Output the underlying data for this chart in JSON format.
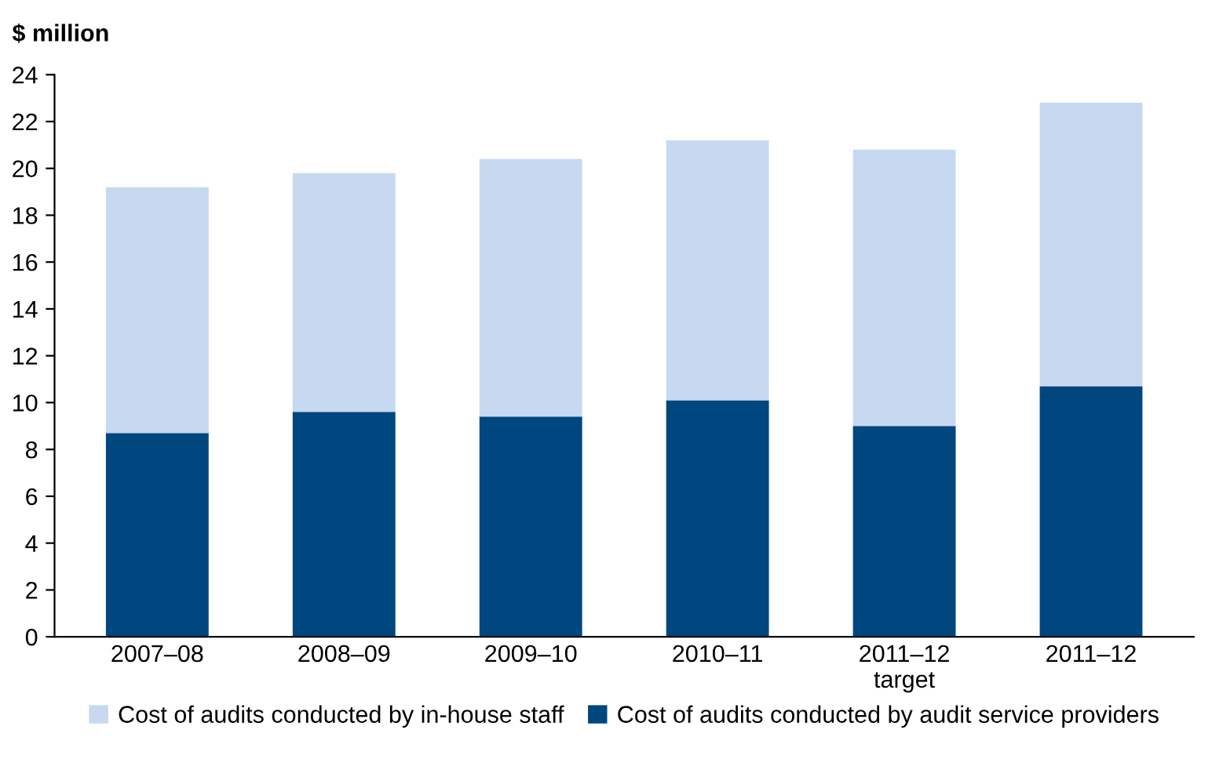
{
  "chart_data": {
    "type": "bar",
    "stacked": true,
    "ylabel": "$ million",
    "categories": [
      "2007–08",
      "2008–09",
      "2009–10",
      "2010–11",
      "2011–12\ntarget",
      "2011–12"
    ],
    "series": [
      {
        "name": "Cost of audits conducted by audit service providers",
        "color": "#00467f",
        "values": [
          8.7,
          9.6,
          9.4,
          10.1,
          9.0,
          10.7
        ]
      },
      {
        "name": "Cost of audits conducted by in-house staff",
        "color": "#c6d9f1",
        "values": [
          10.5,
          10.2,
          11.0,
          11.1,
          11.8,
          12.1
        ]
      }
    ],
    "ylim": [
      0,
      24
    ],
    "yticks": [
      0,
      2,
      4,
      6,
      8,
      10,
      12,
      14,
      16,
      18,
      20,
      22,
      24
    ],
    "grid": false,
    "legend": "bottom"
  }
}
